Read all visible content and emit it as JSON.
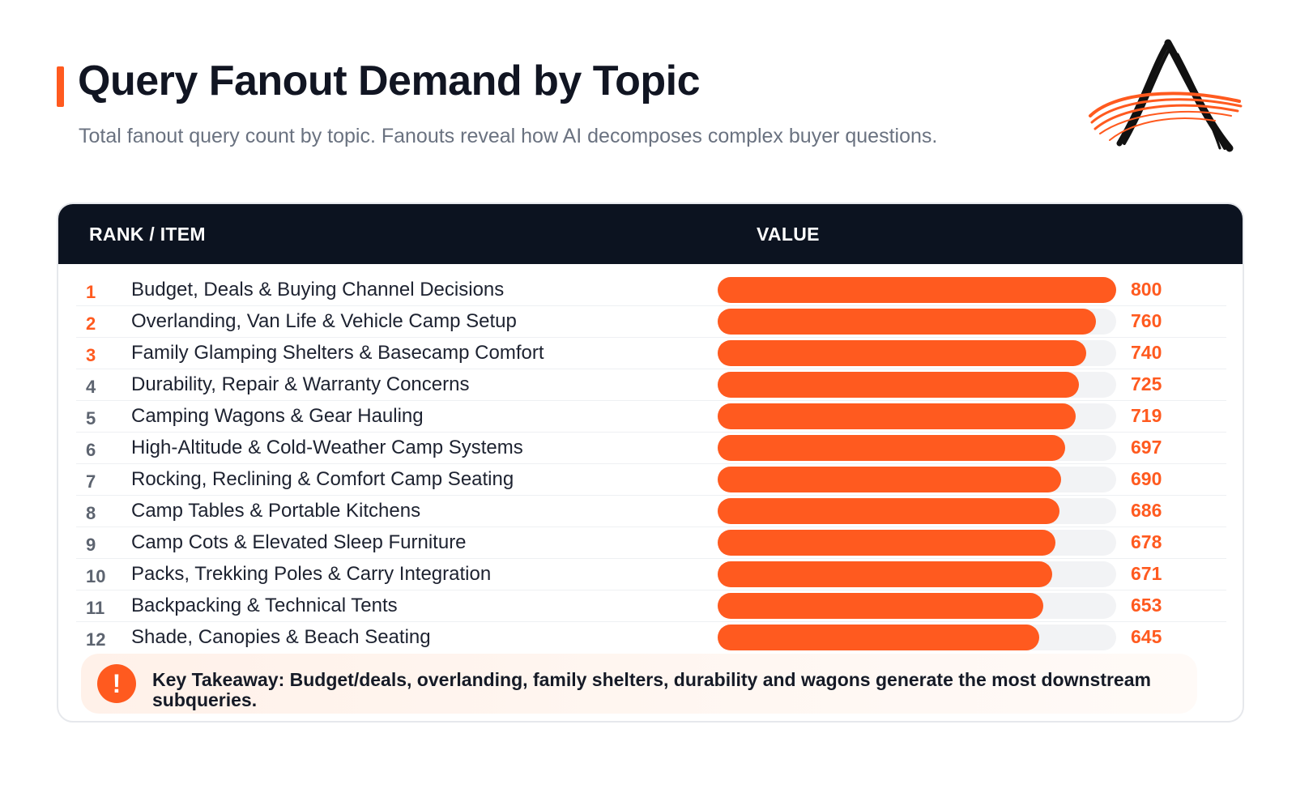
{
  "header": {
    "title": "Query Fanout Demand by Topic",
    "subtitle": "Total fanout query count by topic. Fanouts reveal how AI decomposes complex buyer questions."
  },
  "logo": {
    "icon": "stylized-a-logo-icon",
    "colors": [
      "#111111",
      "#ff5a1f"
    ]
  },
  "table": {
    "columns": [
      "RANK / ITEM",
      "VALUE"
    ]
  },
  "colors": {
    "accent": "#ff5a1f",
    "header_bg": "#0c1320",
    "track": "#f2f3f5"
  },
  "chart_data": {
    "type": "bar",
    "orientation": "horizontal",
    "xlim": [
      0,
      800
    ],
    "categories": [
      "Budget, Deals & Buying Channel Decisions",
      "Overlanding, Van Life & Vehicle Camp Setup",
      "Family Glamping Shelters & Basecamp Comfort",
      "Durability, Repair & Warranty Concerns",
      "Camping Wagons & Gear Hauling",
      "High-Altitude & Cold-Weather Camp Systems",
      "Rocking, Reclining & Comfort Camp Seating",
      "Camp Tables & Portable Kitchens",
      "Camp Cots & Elevated Sleep Furniture",
      "Packs, Trekking Poles & Carry Integration",
      "Backpacking & Technical Tents",
      "Shade, Canopies & Beach Seating"
    ],
    "ranks": [
      "1",
      "2",
      "3",
      "4",
      "5",
      "6",
      "7",
      "8",
      "9",
      "10",
      "11",
      "12"
    ],
    "values": [
      800,
      760,
      740,
      725,
      719,
      697,
      690,
      686,
      678,
      671,
      653,
      645
    ]
  },
  "takeaway": {
    "icon": "exclamation-icon",
    "icon_glyph": "!",
    "text": "Key Takeaway: Budget/deals, overlanding, family shelters, durability and wagons generate the most downstream subqueries."
  }
}
